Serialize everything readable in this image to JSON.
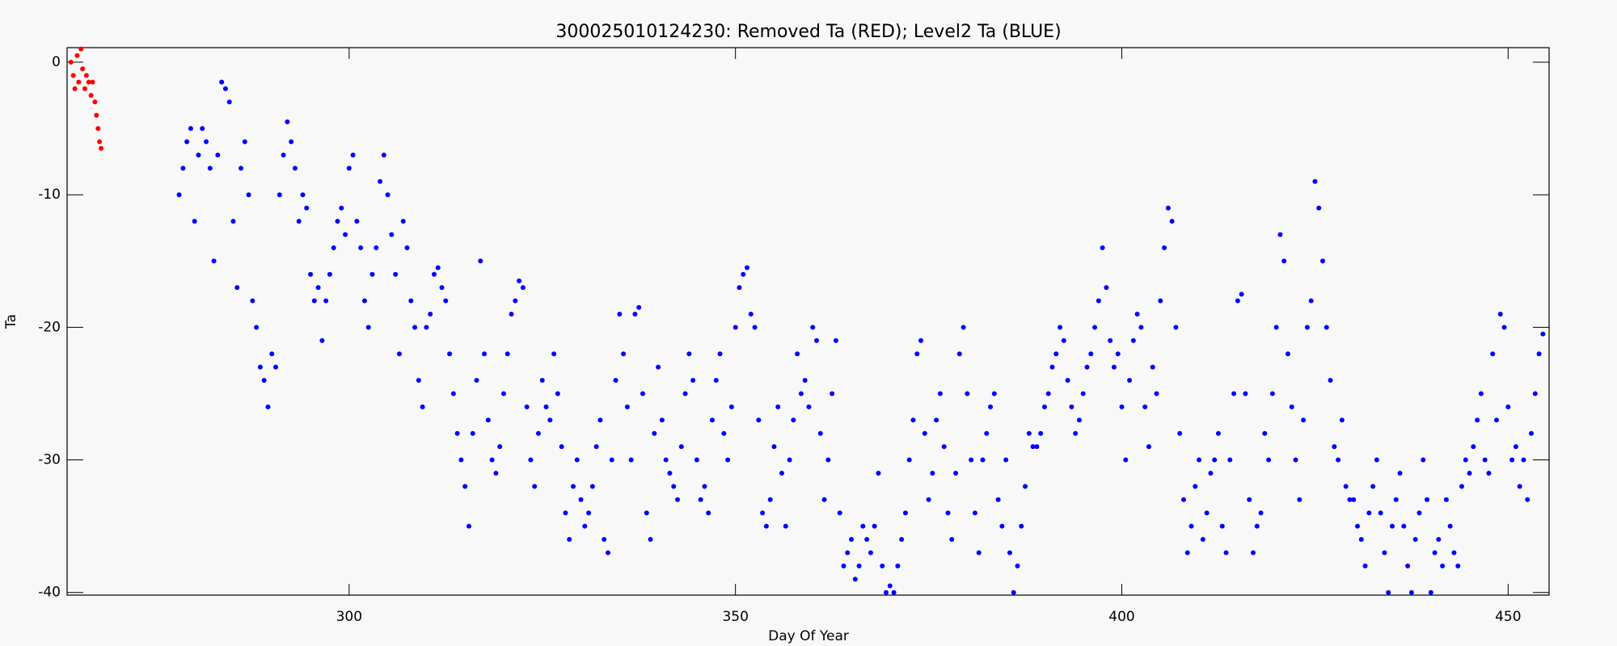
{
  "chart_data": {
    "type": "scatter",
    "title": "300025010124230: Removed Ta (RED); Level2 Ta (BLUE)",
    "x_label": "Day Of Year",
    "y_label": "Ta",
    "xlim": [
      263.5,
      455.3
    ],
    "ylim": [
      -40.2,
      1.1
    ],
    "xticks": [
      300,
      350,
      400,
      450
    ],
    "yticks": [
      0,
      -10,
      -20,
      -30,
      -40
    ],
    "series": [
      {
        "color": "#ff0000",
        "x": [
          264,
          264.3,
          264.5,
          264.8,
          265,
          265.3,
          265.5,
          265.8,
          266,
          266.3,
          266.6,
          266.8,
          267.1,
          267.3,
          267.5,
          267.7,
          267.9
        ],
        "values": [
          0,
          -1,
          -2,
          0.5,
          -1.5,
          1,
          -0.5,
          -2,
          -1,
          -1.5,
          -2.5,
          -1.5,
          -3,
          -4,
          -5,
          -6,
          -6.5
        ]
      },
      {
        "color": "#0000ff",
        "x": [
          278,
          278.5,
          279,
          279.5,
          280,
          280.5,
          281,
          281.5,
          282,
          282.5,
          283,
          283.5,
          284,
          284.5,
          285,
          285.5,
          286,
          286.5,
          287,
          287.5,
          288,
          288.5,
          289,
          289.5,
          290,
          290.5,
          291,
          291.5,
          292,
          292.5,
          293,
          293.5,
          294,
          294.5,
          295,
          295.5,
          296,
          296.5,
          297,
          297.5,
          298,
          298.5,
          299,
          299.5,
          300,
          300.5,
          301,
          301.5,
          302,
          302.5,
          303,
          303.5,
          304,
          304.5,
          305,
          305.5,
          306,
          306.5,
          307,
          307.5,
          308,
          308.5,
          309,
          309.5,
          310,
          310.5,
          311,
          311.5,
          312,
          312.5,
          313,
          313.5,
          314,
          314.5,
          315,
          315.5,
          316,
          316.5,
          317,
          317.5,
          318,
          318.5,
          319,
          319.5,
          320,
          320.5,
          321,
          321.5,
          322,
          322.5,
          323,
          323.5,
          324,
          324.5,
          325,
          325.5,
          326,
          326.5,
          327,
          327.5,
          328,
          328.5,
          329,
          329.5,
          330,
          330.5,
          331,
          331.5,
          332,
          332.5,
          333,
          333.5,
          334,
          334.5,
          335,
          335.5,
          336,
          336.5,
          337,
          337.5,
          338,
          338.5,
          339,
          339.5,
          340,
          340.5,
          341,
          341.5,
          342,
          342.5,
          343,
          343.5,
          344,
          344.5,
          345,
          345.5,
          346,
          346.5,
          347,
          347.5,
          348,
          348.5,
          349,
          349.5,
          350,
          350.5,
          351,
          351.5,
          352,
          352.5,
          353,
          353.5,
          354,
          354.5,
          355,
          355.5,
          356,
          356.5,
          357,
          357.5,
          358,
          358.5,
          359,
          359.5,
          360,
          360.5,
          361,
          361.5,
          362,
          362.5,
          363,
          363.5,
          364,
          364.5,
          365,
          365.5,
          366,
          366.5,
          367,
          367.5,
          368,
          368.5,
          369,
          369.5,
          370,
          370.5,
          371,
          371.5,
          372,
          372.5,
          373,
          373.5,
          374,
          374.5,
          375,
          375.5,
          376,
          376.5,
          377,
          377.5,
          378,
          378.5,
          379,
          379.5,
          380,
          380.5,
          381,
          381.5,
          382,
          382.5,
          383,
          383.5,
          384,
          384.5,
          385,
          385.5,
          386,
          386.5,
          387,
          387.5,
          388,
          388.5,
          389,
          389.5,
          390,
          390.5,
          391,
          391.5,
          392,
          392.5,
          393,
          393.5,
          394,
          394.5,
          395,
          395.5,
          396,
          396.5,
          397,
          397.5,
          398,
          398.5,
          399,
          399.5,
          400,
          400.5,
          401,
          401.5,
          402,
          402.5,
          403,
          403.5,
          404,
          404.5,
          405,
          405.5,
          406,
          406.5,
          407,
          407.5,
          408,
          408.5,
          409,
          409.5,
          410,
          410.5,
          411,
          411.5,
          412,
          412.5,
          413,
          413.5,
          414,
          414.5,
          415,
          415.5,
          416,
          416.5,
          417,
          417.5,
          418,
          418.5,
          419,
          419.5,
          420,
          420.5,
          421,
          421.5,
          422,
          422.5,
          423,
          423.5,
          424,
          424.5,
          425,
          425.5,
          426,
          426.5,
          427,
          427.5,
          428,
          428.5,
          429,
          429.5,
          430,
          430.5,
          431,
          431.5,
          432,
          432.5,
          433,
          433.5,
          434,
          434.5,
          435,
          435.5,
          436,
          436.5,
          437,
          437.5,
          438,
          438.5,
          439,
          439.5,
          440,
          440.5,
          441,
          441.5,
          442,
          442.5,
          443,
          443.5,
          444,
          444.5,
          445,
          445.5,
          446,
          446.5,
          447,
          447.5,
          448,
          448.5,
          449,
          449.5,
          450,
          450.5,
          451,
          451.5,
          452,
          452.5,
          453,
          453.5,
          454,
          454.5
        ],
        "values": [
          -10,
          -8,
          -6,
          -5,
          -12,
          -7,
          -5,
          -6,
          -8,
          -15,
          -7,
          -1.5,
          -2,
          -3,
          -12,
          -17,
          -8,
          -6,
          -10,
          -18,
          -20,
          -23,
          -24,
          -26,
          -22,
          -23,
          -10,
          -7,
          -4.5,
          -6,
          -8,
          -12,
          -10,
          -11,
          -16,
          -18,
          -17,
          -21,
          -18,
          -16,
          -14,
          -12,
          -11,
          -13,
          -8,
          -7,
          -12,
          -14,
          -18,
          -20,
          -16,
          -14,
          -9,
          -7,
          -10,
          -13,
          -16,
          -22,
          -12,
          -14,
          -18,
          -20,
          -24,
          -26,
          -20,
          -19,
          -16,
          -15.5,
          -17,
          -18,
          -22,
          -25,
          -28,
          -30,
          -32,
          -35,
          -28,
          -24,
          -15,
          -22,
          -27,
          -30,
          -31,
          -29,
          -25,
          -22,
          -19,
          -18,
          -16.5,
          -17,
          -26,
          -30,
          -32,
          -28,
          -24,
          -26,
          -27,
          -22,
          -25,
          -29,
          -34,
          -36,
          -32,
          -30,
          -33,
          -35,
          -34,
          -32,
          -29,
          -27,
          -36,
          -37,
          -30,
          -24,
          -19,
          -22,
          -26,
          -30,
          -19,
          -18.5,
          -25,
          -34,
          -36,
          -28,
          -23,
          -27,
          -30,
          -31,
          -32,
          -33,
          -29,
          -25,
          -22,
          -24,
          -30,
          -33,
          -32,
          -34,
          -27,
          -24,
          -22,
          -28,
          -30,
          -26,
          -20,
          -17,
          -16,
          -15.5,
          -19,
          -20,
          -27,
          -34,
          -35,
          -33,
          -29,
          -26,
          -31,
          -35,
          -30,
          -27,
          -22,
          -25,
          -24,
          -26,
          -20,
          -21,
          -28,
          -33,
          -30,
          -25,
          -21,
          -34,
          -38,
          -37,
          -36,
          -39,
          -38,
          -35,
          -36,
          -37,
          -35,
          -31,
          -38,
          -40,
          -39.5,
          -40,
          -38,
          -36,
          -34,
          -30,
          -27,
          -22,
          -21,
          -28,
          -33,
          -31,
          -27,
          -25,
          -29,
          -34,
          -36,
          -31,
          -22,
          -20,
          -25,
          -30,
          -34,
          -37,
          -30,
          -28,
          -26,
          -25,
          -33,
          -35,
          -30,
          -37,
          -40,
          -38,
          -35,
          -32,
          -28,
          -29,
          -29,
          -28,
          -26,
          -25,
          -23,
          -22,
          -20,
          -21,
          -24,
          -26,
          -28,
          -27,
          -25,
          -23,
          -22,
          -20,
          -18,
          -14,
          -17,
          -21,
          -23,
          -22,
          -26,
          -30,
          -24,
          -21,
          -19,
          -20,
          -26,
          -29,
          -23,
          -25,
          -18,
          -14,
          -11,
          -12,
          -20,
          -28,
          -33,
          -37,
          -35,
          -32,
          -30,
          -36,
          -34,
          -31,
          -30,
          -28,
          -35,
          -37,
          -30,
          -25,
          -18,
          -17.5,
          -25,
          -33,
          -37,
          -35,
          -34,
          -28,
          -30,
          -25,
          -20,
          -13,
          -15,
          -22,
          -26,
          -30,
          -33,
          -27,
          -20,
          -18,
          -9,
          -11,
          -15,
          -20,
          -24,
          -29,
          -30,
          -27,
          -32,
          -33,
          -33,
          -35,
          -36,
          -38,
          -34,
          -32,
          -30,
          -34,
          -37,
          -40,
          -35,
          -33,
          -31,
          -35,
          -38,
          -40,
          -36,
          -34,
          -30,
          -33,
          -40,
          -37,
          -36,
          -38,
          -33,
          -35,
          -37,
          -38,
          -32,
          -30,
          -31,
          -29,
          -27,
          -25,
          -30,
          -31,
          -22,
          -27,
          -19,
          -20,
          -26,
          -30,
          -29,
          -32,
          -30,
          -33,
          -28,
          -25,
          -22,
          -20.5
        ]
      }
    ]
  }
}
